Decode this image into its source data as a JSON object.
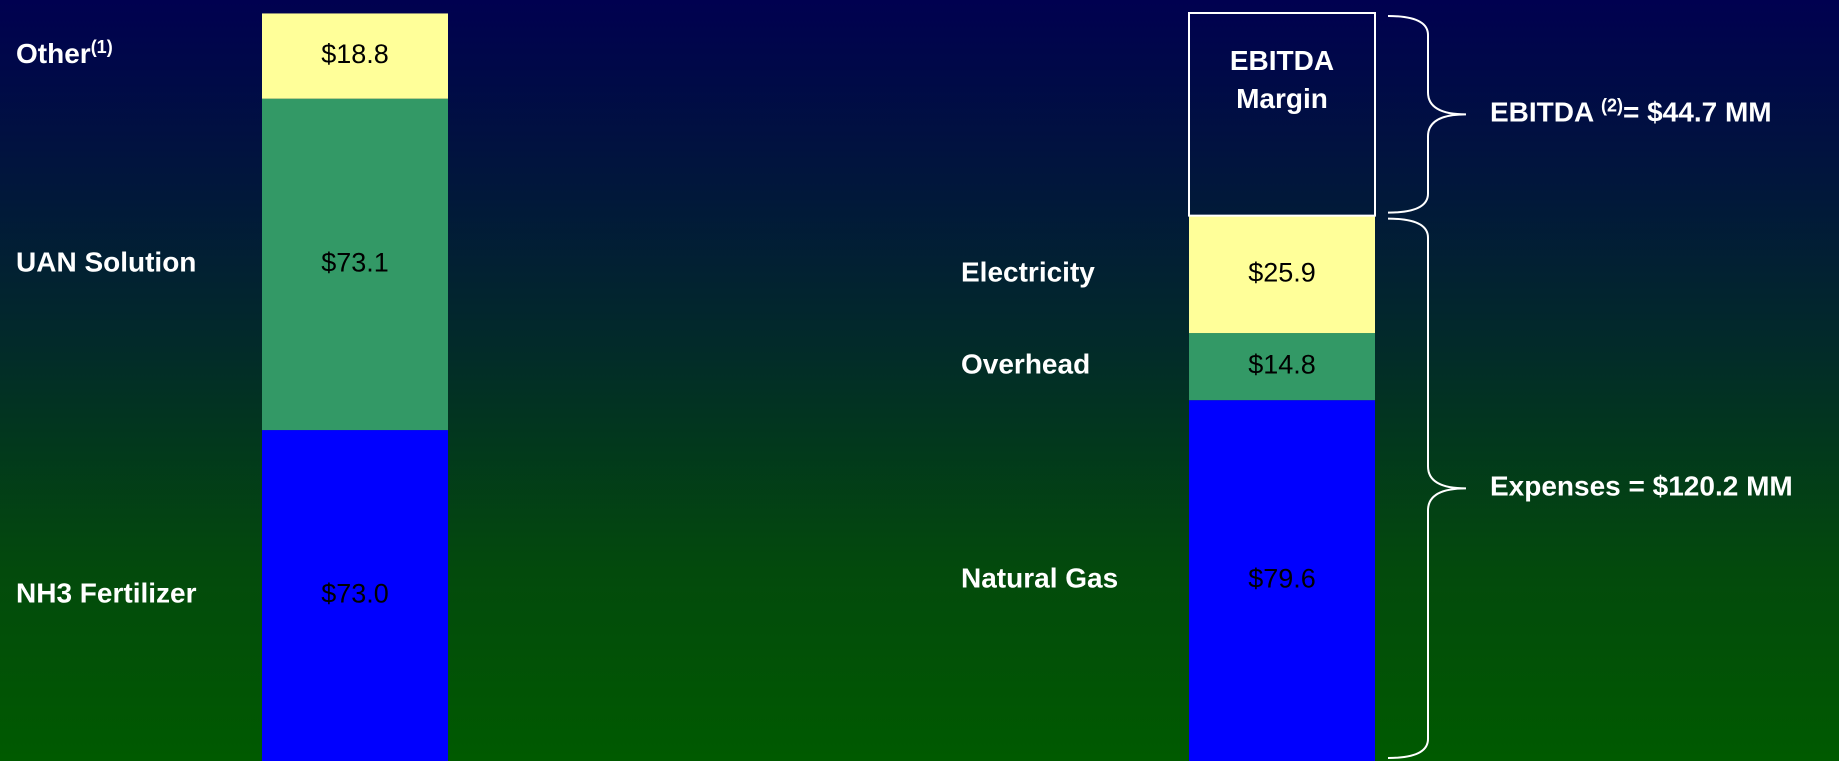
{
  "chart_data": {
    "type": "stacked_bar",
    "stacks": [
      {
        "segments": [
          {
            "name": "NH3 Fertilizer",
            "value": 73.0,
            "value_label": "$73.0",
            "color": "#0000ff"
          },
          {
            "name": "UAN Solution",
            "value": 73.1,
            "value_label": "$73.1",
            "color": "#339966"
          },
          {
            "name": "Other",
            "footnote": "(1)",
            "value": 18.8,
            "value_label": "$18.8",
            "color": "#ffff99"
          }
        ]
      },
      {
        "segments": [
          {
            "name": "Natural Gas",
            "value": 79.6,
            "value_label": "$79.6",
            "color": "#0000ff"
          },
          {
            "name": "Overhead",
            "value": 14.8,
            "value_label": "$14.8",
            "color": "#339966"
          },
          {
            "name": "Electricity",
            "value": 25.9,
            "value_label": "$25.9",
            "color": "#ffff99"
          },
          {
            "name": [
              "EBITDA",
              "Margin"
            ],
            "value": 44.7,
            "color": "none",
            "outline": "#ffffff"
          }
        ]
      }
    ],
    "annotations": [
      {
        "text": "EBITDA ",
        "footnote": "(2)",
        "rest": "= $44.7 MM"
      },
      {
        "text": "Expenses = $120.2 MM"
      }
    ]
  }
}
